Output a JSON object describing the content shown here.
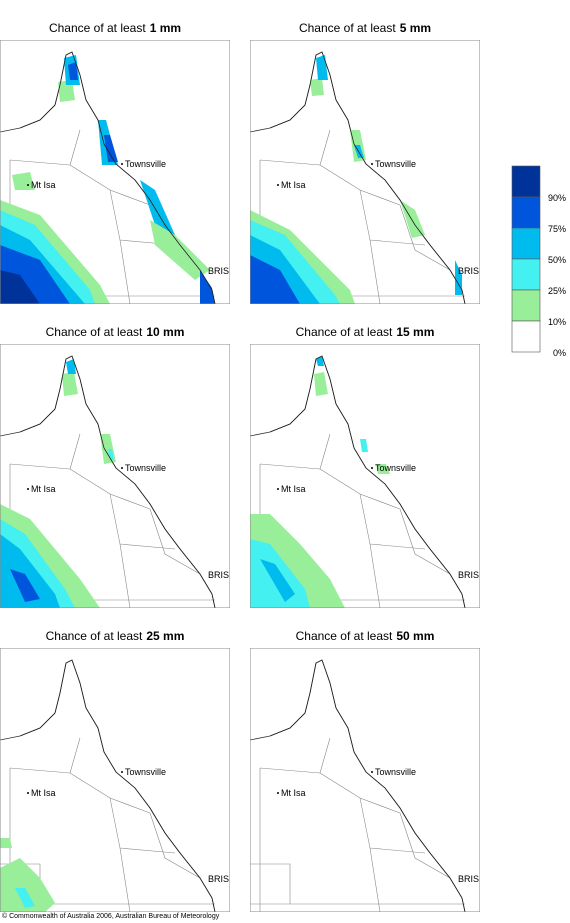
{
  "panels": [
    {
      "title": "Chance of at least",
      "amount": "1 mm"
    },
    {
      "title": "Chance of at least",
      "amount": "5 mm"
    },
    {
      "title": "Chance of at least",
      "amount": "10 mm"
    },
    {
      "title": "Chance of at least",
      "amount": "15 mm"
    },
    {
      "title": "Chance of at least",
      "amount": "25 mm"
    },
    {
      "title": "Chance of at least",
      "amount": "50 mm"
    }
  ],
  "places": [
    "Townsville",
    "Mt Isa",
    "BRIS"
  ],
  "legend": {
    "labels": [
      "90%",
      "75%",
      "50%",
      "25%",
      "10%",
      "0%"
    ],
    "colors": [
      "#003399",
      "#0055dd",
      "#00bbee",
      "#44f0f0",
      "#99ee99",
      "#ffffff"
    ]
  },
  "copyright": "© Commonwealth of Australia 2006, Australian Bureau of Meteorology"
}
